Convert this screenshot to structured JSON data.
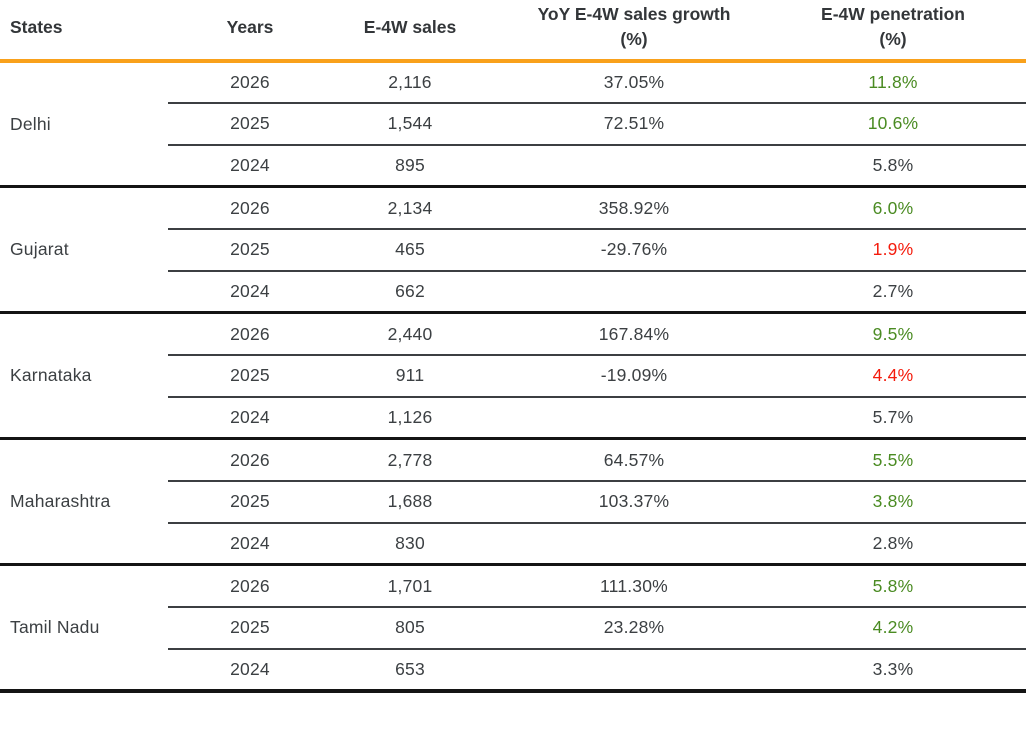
{
  "colors": {
    "header_rule_orange": "#F9A11B",
    "group_rule_black": "#141414",
    "row_rule_gray": "#3c3f42",
    "text_dark_gray": "#3c4043",
    "positive_green": "#4A8B22",
    "negative_red": "#F41B0C"
  },
  "chart_data": {
    "type": "table",
    "columns": [
      "States",
      "Years",
      "E-4W sales",
      "YoY E-4W sales growth (%)",
      "E-4W penetration (%)"
    ],
    "columns_display": [
      {
        "line1": "States"
      },
      {
        "line1": "Years"
      },
      {
        "line1": "E-4W sales"
      },
      {
        "line1": "YoY E-4W sales growth",
        "line2": "(%)"
      },
      {
        "line1": "E-4W penetration",
        "line2": "(%)"
      }
    ],
    "groups": [
      {
        "state": "Delhi",
        "rows": [
          {
            "year": "2026",
            "sales": "2,116",
            "growth": "37.05%",
            "penetration": "11.8%",
            "tone": "green"
          },
          {
            "year": "2025",
            "sales": "1,544",
            "growth": "72.51%",
            "penetration": "10.6%",
            "tone": "green"
          },
          {
            "year": "2024",
            "sales": "895",
            "growth": "",
            "penetration": "5.8%",
            "tone": "neutral"
          }
        ]
      },
      {
        "state": "Gujarat",
        "rows": [
          {
            "year": "2026",
            "sales": "2,134",
            "growth": "358.92%",
            "penetration": "6.0%",
            "tone": "green"
          },
          {
            "year": "2025",
            "sales": "465",
            "growth": "-29.76%",
            "penetration": "1.9%",
            "tone": "red"
          },
          {
            "year": "2024",
            "sales": "662",
            "growth": "",
            "penetration": "2.7%",
            "tone": "neutral"
          }
        ]
      },
      {
        "state": "Karnataka",
        "rows": [
          {
            "year": "2026",
            "sales": "2,440",
            "growth": "167.84%",
            "penetration": "9.5%",
            "tone": "green"
          },
          {
            "year": "2025",
            "sales": "911",
            "growth": "-19.09%",
            "penetration": "4.4%",
            "tone": "red"
          },
          {
            "year": "2024",
            "sales": "1,126",
            "growth": "",
            "penetration": "5.7%",
            "tone": "neutral"
          }
        ]
      },
      {
        "state": "Maharashtra",
        "rows": [
          {
            "year": "2026",
            "sales": "2,778",
            "growth": "64.57%",
            "penetration": "5.5%",
            "tone": "green"
          },
          {
            "year": "2025",
            "sales": "1,688",
            "growth": "103.37%",
            "penetration": "3.8%",
            "tone": "green"
          },
          {
            "year": "2024",
            "sales": "830",
            "growth": "",
            "penetration": "2.8%",
            "tone": "neutral"
          }
        ]
      },
      {
        "state": "Tamil Nadu",
        "rows": [
          {
            "year": "2026",
            "sales": "1,701",
            "growth": "111.30%",
            "penetration": "5.8%",
            "tone": "green"
          },
          {
            "year": "2025",
            "sales": "805",
            "growth": "23.28%",
            "penetration": "4.2%",
            "tone": "green"
          },
          {
            "year": "2024",
            "sales": "653",
            "growth": "",
            "penetration": "3.3%",
            "tone": "neutral"
          }
        ]
      }
    ]
  }
}
